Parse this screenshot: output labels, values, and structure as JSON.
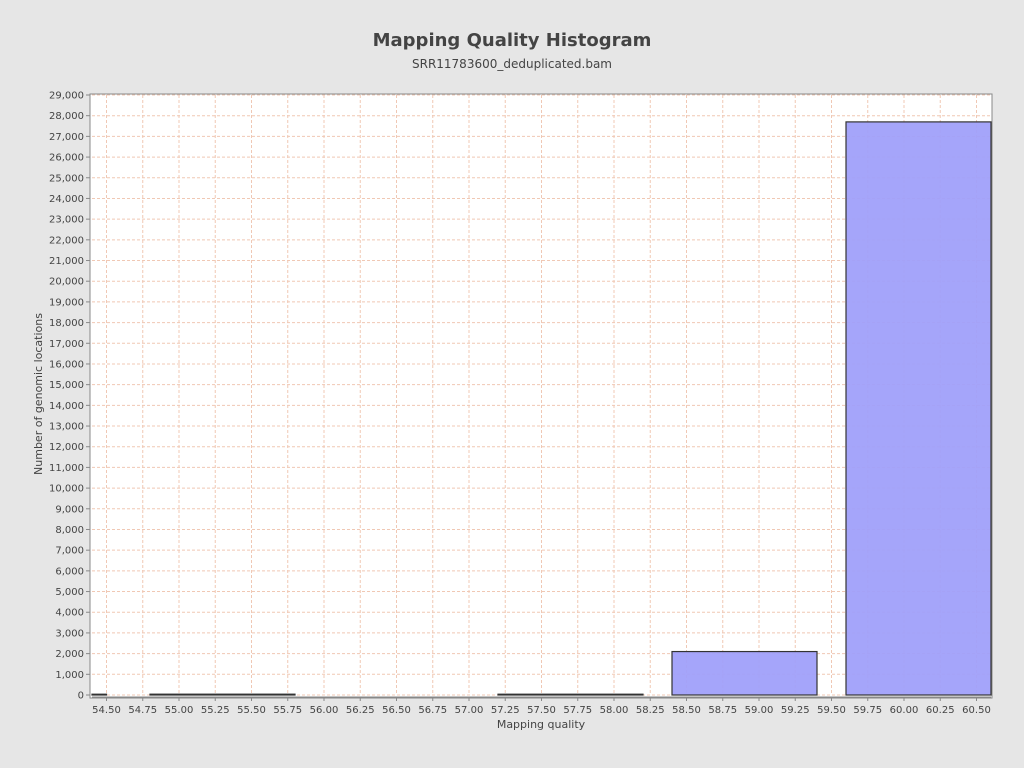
{
  "chart_data": {
    "type": "bar",
    "title": "Mapping Quality Histogram",
    "subtitle": "SRR11783600_deduplicated.bam",
    "xlabel": "Mapping quality",
    "ylabel": "Number of genomic locations",
    "xlim": [
      54.4,
      60.6
    ],
    "ylim": [
      0,
      29000
    ],
    "x_ticks": [
      54.5,
      54.75,
      55.0,
      55.25,
      55.5,
      55.75,
      56.0,
      56.25,
      56.5,
      56.75,
      57.0,
      57.25,
      57.5,
      57.75,
      58.0,
      58.25,
      58.5,
      58.75,
      59.0,
      59.25,
      59.5,
      59.75,
      60.0,
      60.25,
      60.5
    ],
    "x_tick_labels": [
      "54.50",
      "54.75",
      "55.00",
      "55.25",
      "55.50",
      "55.75",
      "56.00",
      "56.25",
      "56.50",
      "56.75",
      "57.00",
      "57.25",
      "57.50",
      "57.75",
      "58.00",
      "58.25",
      "58.50",
      "58.75",
      "59.00",
      "59.25",
      "59.50",
      "59.75",
      "60.00",
      "60.25",
      "60.50"
    ],
    "y_ticks": [
      0,
      1000,
      2000,
      3000,
      4000,
      5000,
      6000,
      7000,
      8000,
      9000,
      10000,
      11000,
      12000,
      13000,
      14000,
      15000,
      16000,
      17000,
      18000,
      19000,
      20000,
      21000,
      22000,
      23000,
      24000,
      25000,
      26000,
      27000,
      28000,
      29000
    ],
    "y_tick_labels": [
      "0",
      "1,000",
      "2,000",
      "3,000",
      "4,000",
      "5,000",
      "6,000",
      "7,000",
      "8,000",
      "9,000",
      "10,000",
      "11,000",
      "12,000",
      "13,000",
      "14,000",
      "15,000",
      "16,000",
      "17,000",
      "18,000",
      "19,000",
      "20,000",
      "21,000",
      "22,000",
      "23,000",
      "24,000",
      "25,000",
      "26,000",
      "27,000",
      "28,000",
      "29,000"
    ],
    "bars": [
      {
        "x0": 54.4,
        "x1": 54.5,
        "value": 0
      },
      {
        "x0": 54.8,
        "x1": 55.8,
        "value": 40
      },
      {
        "x0": 57.2,
        "x1": 58.2,
        "value": 5
      },
      {
        "x0": 58.4,
        "x1": 59.4,
        "value": 2100
      },
      {
        "x0": 59.6,
        "x1": 60.6,
        "value": 27700
      }
    ],
    "bar_color": "#a0a0fa",
    "bar_outline": "#333333",
    "grid": true,
    "grid_color": "#f0c8b4",
    "legend": "none"
  }
}
